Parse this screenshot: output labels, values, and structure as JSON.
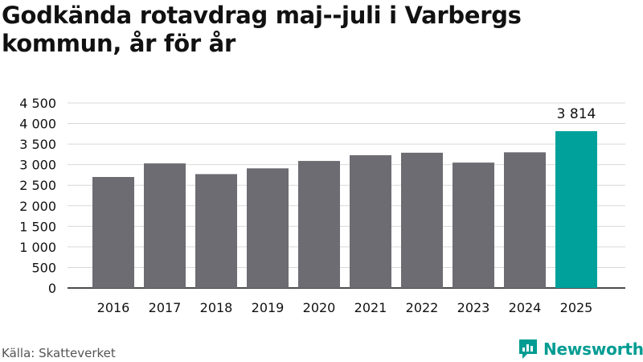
{
  "title": "Godkända rotavdrag maj--juli i Varbergs kommun, år för år",
  "source": "Källa: Skatteverket",
  "brand": {
    "name": "Newsworthy",
    "icon": "newsworthy-logo-icon",
    "color": "#009c92"
  },
  "colors": {
    "bar": "#6d6c72",
    "highlight": "#00a19b",
    "grid": "#d9d9d9",
    "axis": "#111111"
  },
  "chart_data": {
    "type": "bar",
    "title": "Godkända rotavdrag maj--juli i Varbergs kommun, år för år",
    "xlabel": "",
    "ylabel": "",
    "categories": [
      "2016",
      "2017",
      "2018",
      "2019",
      "2020",
      "2021",
      "2022",
      "2023",
      "2024",
      "2025"
    ],
    "values": [
      2700,
      3030,
      2770,
      2910,
      3090,
      3230,
      3290,
      3050,
      3300,
      3814
    ],
    "highlight_index": 9,
    "annotations": [
      {
        "category": "2025",
        "text": "3 814"
      }
    ],
    "yticks": [
      0,
      500,
      1000,
      1500,
      2000,
      2500,
      3000,
      3500,
      4000,
      4500
    ],
    "ytick_labels": [
      "0",
      "500",
      "1 000",
      "1 500",
      "2 000",
      "2 500",
      "3 000",
      "3 500",
      "4 000",
      "4 500"
    ],
    "ylim": [
      0,
      4500
    ],
    "grid": true,
    "legend": "none"
  }
}
